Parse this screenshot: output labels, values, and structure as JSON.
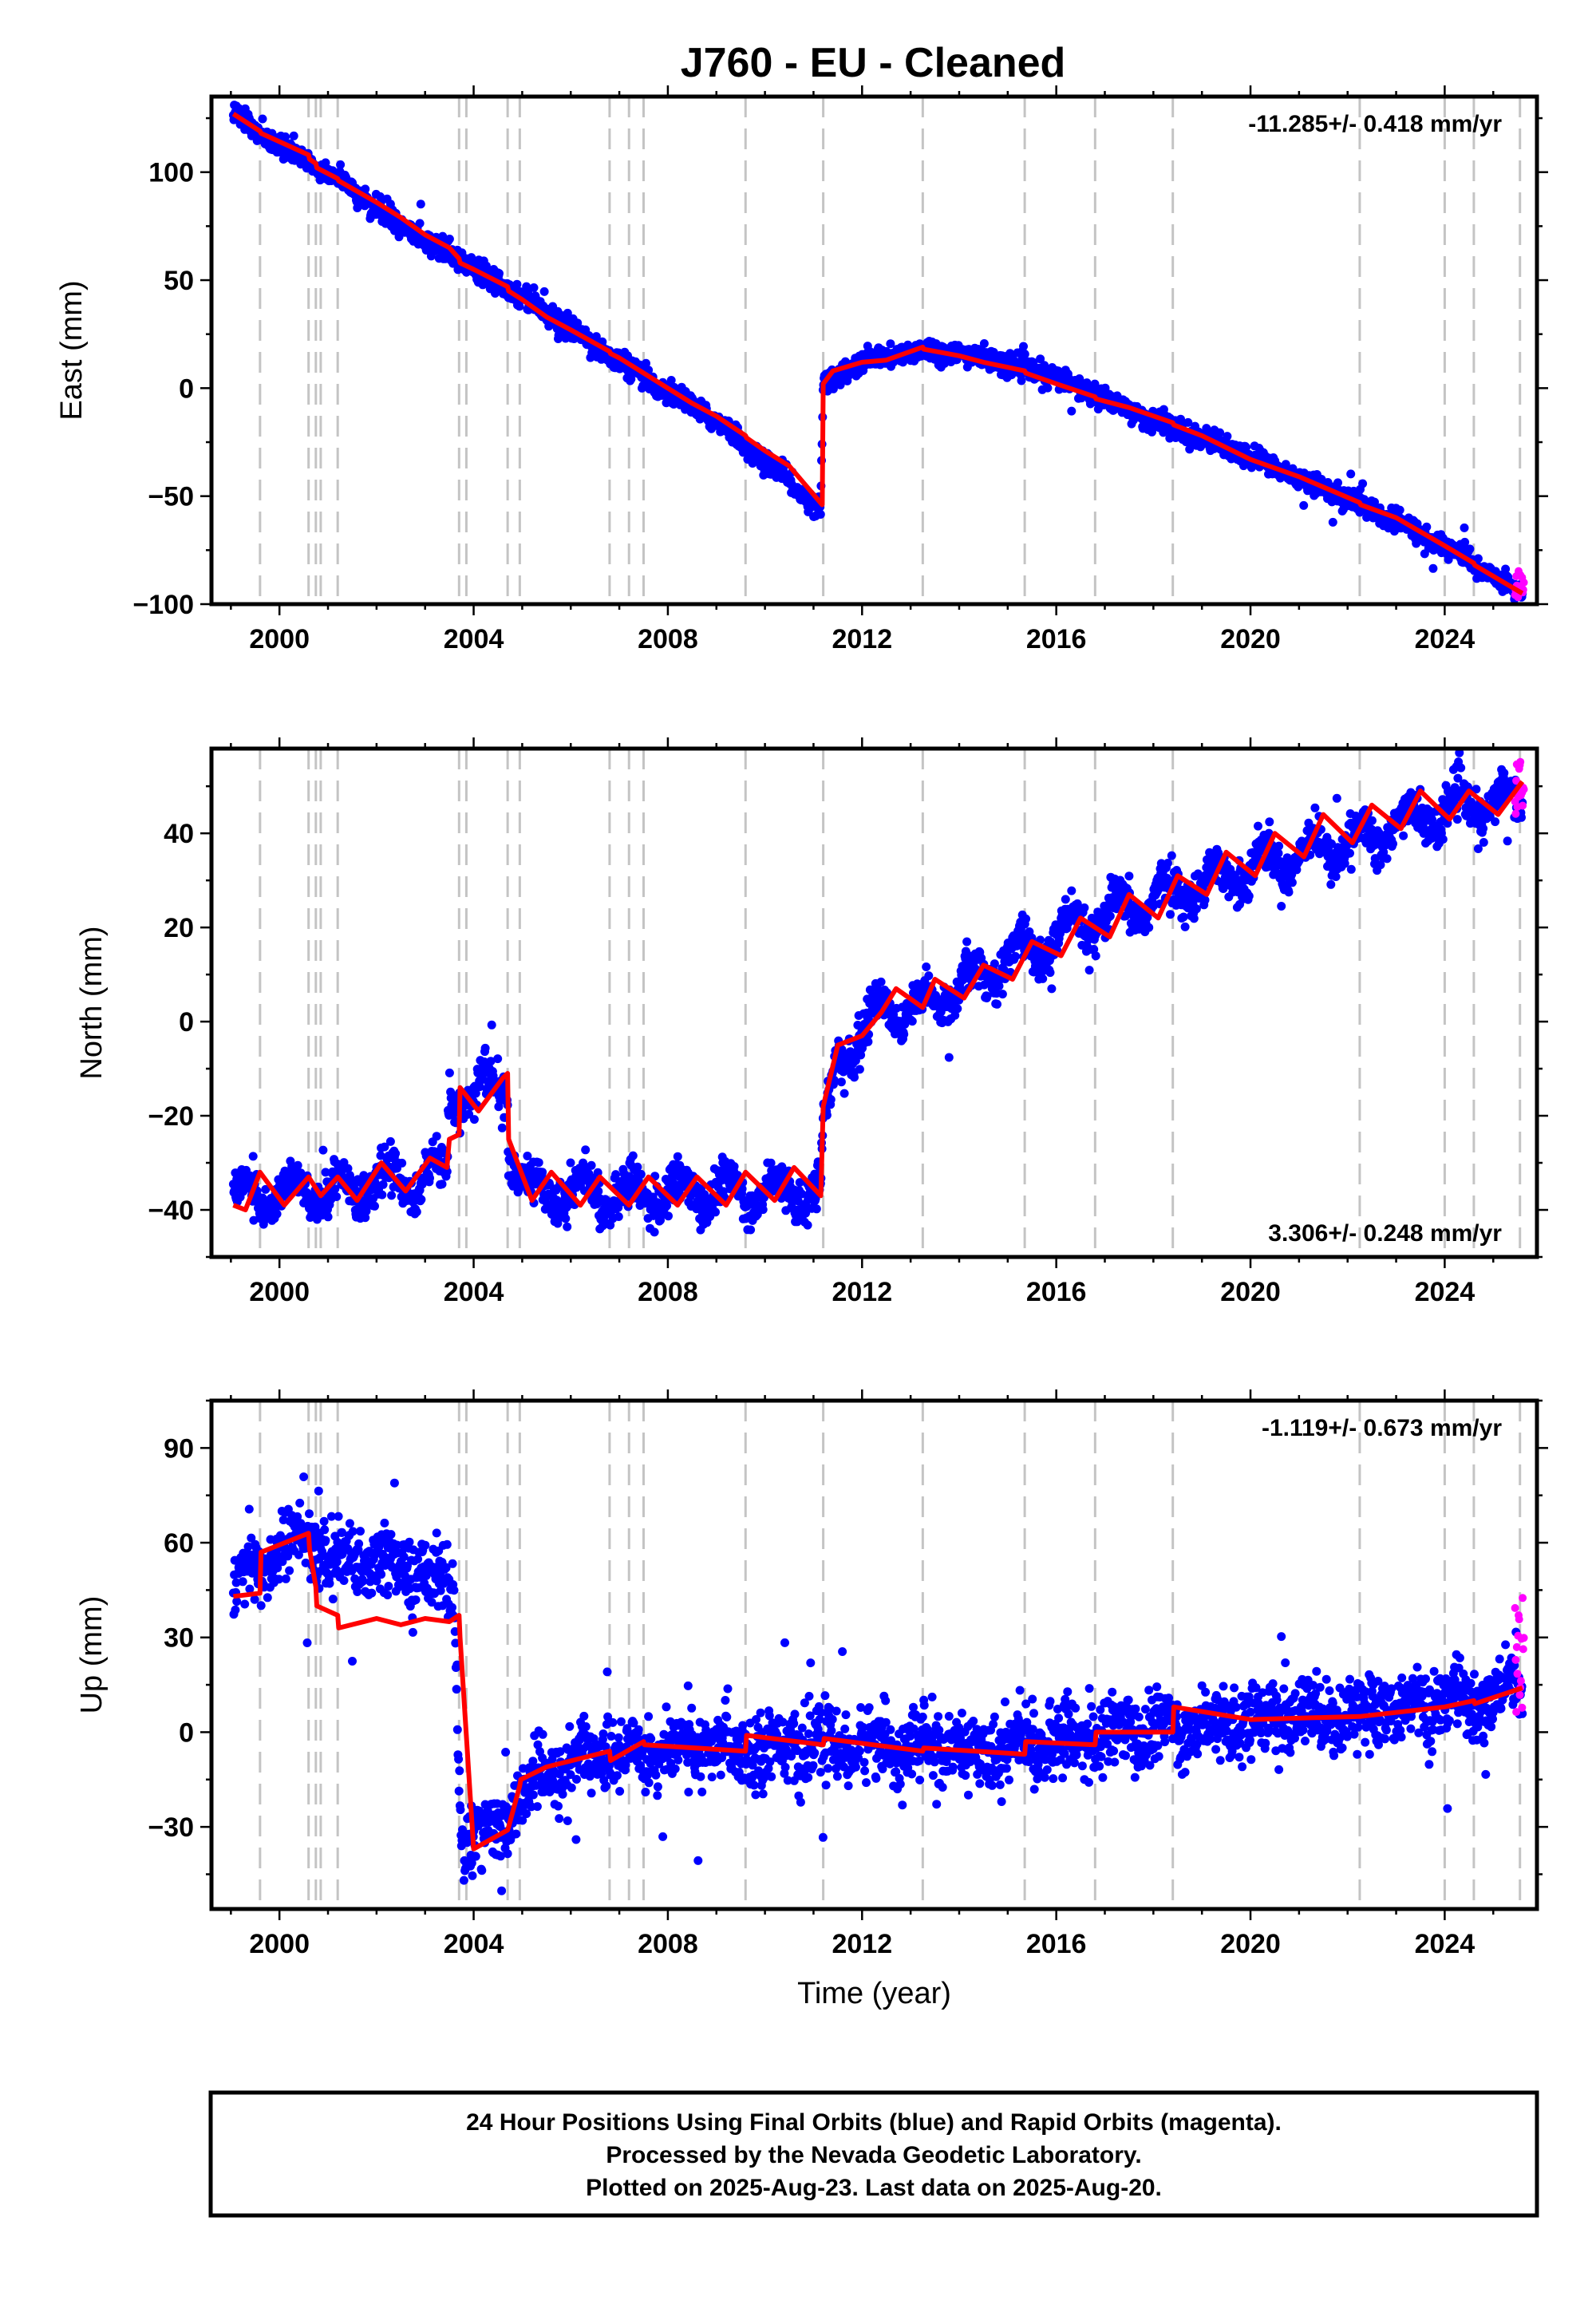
{
  "title": "J760  - EU - Cleaned",
  "colors": {
    "final": "#0000ff",
    "rapid": "#ff00ff",
    "model": "#ff0000",
    "events": "#c4c4c4"
  },
  "event_years": [
    1999.6,
    2000.6,
    2000.75,
    2000.85,
    2001.2,
    2003.7,
    2003.85,
    2004.7,
    2004.95,
    2006.8,
    2007.2,
    2007.5,
    2009.6,
    2011.2,
    2013.25,
    2015.35,
    2016.8,
    2018.4,
    2022.25,
    2024.0,
    2024.6,
    2025.55
  ],
  "footer": [
    "24 Hour Positions Using Final Orbits (blue) and Rapid Orbits (magenta).",
    "Processed by the Nevada Geodetic Laboratory.",
    "Plotted on 2025-Aug-23. Last data on 2025-Aug-20."
  ],
  "chart_data": [
    {
      "type": "scatter",
      "ylabel": "East (mm)",
      "xlabel": "",
      "rate_label": "-11.285+/- 0.418 mm/yr",
      "rate_position": "top-right",
      "xlim": [
        1998.6,
        2025.9
      ],
      "ylim": [
        -100,
        135
      ],
      "xticks": [
        2000,
        2004,
        2008,
        2012,
        2016,
        2020,
        2024
      ],
      "yticks": [
        -100,
        -50,
        0,
        50,
        100
      ],
      "ytick_labels": [
        "−100",
        "−50",
        "0",
        "50",
        "100"
      ],
      "noise": 2.5,
      "seasonal": 0.8,
      "outliers": 0.003,
      "rapid": {
        "from": 2025.45,
        "to": 2025.63,
        "y": [
          -97,
          -84
        ]
      },
      "series": [
        {
          "name": "Final Orbits",
          "x_start": 1999.05,
          "x_end": 2025.6,
          "trend_x": [
            1999.05,
            2000.0,
            2001.2,
            2002.5,
            2004.0,
            2005.0,
            2007.0,
            2009.0,
            2011.15,
            2011.2,
            2012.0,
            2013.3,
            2014.5,
            2016.0,
            2018.0,
            2020.0,
            2022.0,
            2024.0,
            2025.6
          ],
          "trend_y": [
            127,
            112,
            97,
            75,
            56,
            43,
            12,
            -15,
            -56,
            2,
            12,
            18,
            14,
            5,
            -15,
            -32,
            -51,
            -73,
            -95
          ]
        },
        {
          "name": "Model",
          "role": "model",
          "x": [
            1999.05,
            1999.6,
            1999.62,
            2000.6,
            2000.62,
            2000.75,
            2000.77,
            2001.2,
            2001.22,
            2002.0,
            2002.5,
            2003.0,
            2003.5,
            2003.7,
            2003.72,
            2004.0,
            2004.7,
            2004.72,
            2005.0,
            2005.5,
            2006.0,
            2006.8,
            2006.82,
            2007.0,
            2007.5,
            2008.0,
            2008.5,
            2009.0,
            2009.6,
            2009.62,
            2010.0,
            2010.5,
            2011.18,
            2011.2,
            2011.4,
            2012.0,
            2012.5,
            2013.25,
            2013.27,
            2014.0,
            2014.5,
            2015.35,
            2015.37,
            2016.0,
            2016.8,
            2016.82,
            2017.5,
            2018.4,
            2018.42,
            2019.0,
            2020.0,
            2021.0,
            2022.25,
            2022.27,
            2023.0,
            2024.0,
            2024.6,
            2024.62,
            2025.6
          ],
          "y": [
            127,
            119,
            118,
            108,
            106,
            104,
            102,
            97,
            96,
            86,
            79,
            71,
            65,
            60,
            58,
            55,
            47,
            45,
            41,
            33,
            27,
            17,
            16,
            14,
            7,
            0,
            -7,
            -13,
            -22,
            -23,
            -29,
            -36,
            -54,
            2,
            8,
            12,
            13,
            19,
            18,
            15,
            12,
            8,
            7,
            2,
            -4,
            -5,
            -9,
            -16,
            -17,
            -22,
            -33,
            -41,
            -53,
            -54,
            -60,
            -73,
            -81,
            -82,
            -95
          ]
        }
      ]
    },
    {
      "type": "scatter",
      "ylabel": "North (mm)",
      "xlabel": "",
      "rate_label": "3.306+/- 0.248 mm/yr",
      "rate_position": "bottom-right",
      "xlim": [
        1998.6,
        2025.9
      ],
      "ylim": [
        -50,
        58
      ],
      "xticks": [
        2000,
        2004,
        2008,
        2012,
        2016,
        2020,
        2024
      ],
      "yticks": [
        -40,
        -20,
        0,
        20,
        40
      ],
      "ytick_labels": [
        "−40",
        "−20",
        "0",
        "20",
        "40"
      ],
      "noise": 2.2,
      "seasonal": 3.5,
      "outliers": 0.003,
      "rapid": {
        "from": 2025.45,
        "to": 2025.63,
        "y": [
          44,
          57
        ]
      },
      "series": [
        {
          "name": "Final Orbits",
          "x_start": 1999.05,
          "x_end": 2025.6,
          "trend_x": [
            1999.05,
            2001.0,
            2003.0,
            2003.45,
            2003.5,
            2003.7,
            2004.7,
            2004.72,
            2005.0,
            2007.0,
            2009.0,
            2011.15,
            2011.2,
            2011.5,
            2012.0,
            2012.5,
            2013.25,
            2014.0,
            2016.0,
            2018.0,
            2020.0,
            2022.0,
            2024.0,
            2025.6
          ],
          "trend_y": [
            -37,
            -36,
            -33,
            -33,
            -17,
            -15,
            -14,
            -28,
            -35,
            -37,
            -36,
            -36,
            -23,
            -8,
            -3,
            4,
            2,
            8,
            18,
            26,
            33,
            38,
            45,
            47
          ]
        },
        {
          "name": "Model",
          "role": "model",
          "x": [
            1999.05,
            1999.3,
            1999.6,
            2000.1,
            2000.6,
            2000.85,
            2001.2,
            2001.6,
            2002.1,
            2002.6,
            2003.1,
            2003.45,
            2003.5,
            2003.7,
            2003.72,
            2004.1,
            2004.6,
            2004.7,
            2004.72,
            2005.2,
            2005.6,
            2006.2,
            2006.6,
            2007.2,
            2007.6,
            2008.2,
            2008.6,
            2009.2,
            2009.6,
            2010.2,
            2010.6,
            2011.15,
            2011.2,
            2011.5,
            2012.0,
            2012.4,
            2012.7,
            2013.25,
            2013.5,
            2014.1,
            2014.5,
            2015.1,
            2015.5,
            2016.1,
            2016.5,
            2017.1,
            2017.5,
            2018.1,
            2018.5,
            2019.1,
            2019.5,
            2020.1,
            2020.5,
            2021.1,
            2021.5,
            2022.1,
            2022.5,
            2023.1,
            2023.5,
            2024.1,
            2024.5,
            2025.1,
            2025.6
          ],
          "y": [
            -39,
            -40,
            -32,
            -39,
            -33,
            -37,
            -33,
            -38,
            -30,
            -36,
            -29,
            -31,
            -25,
            -24,
            -14,
            -19,
            -12,
            -11,
            -25,
            -38,
            -32,
            -39,
            -33,
            -39,
            -33,
            -39,
            -33,
            -39,
            -32,
            -38,
            -31,
            -37,
            -18,
            -5,
            -3,
            2,
            7,
            3,
            9,
            5,
            12,
            9,
            17,
            14,
            22,
            18,
            27,
            22,
            31,
            27,
            36,
            31,
            40,
            35,
            44,
            38,
            46,
            41,
            49,
            43,
            49,
            44,
            51
          ]
        }
      ]
    },
    {
      "type": "scatter",
      "ylabel": "Up (mm)",
      "xlabel": "Time (year)",
      "rate_label": "-1.119+/- 0.673 mm/yr",
      "rate_position": "top-right",
      "xlim": [
        1998.6,
        2025.9
      ],
      "ylim": [
        -56,
        105
      ],
      "xticks": [
        2000,
        2004,
        2008,
        2012,
        2016,
        2020,
        2024
      ],
      "yticks": [
        -30,
        0,
        30,
        60,
        90
      ],
      "ytick_labels": [
        "−30",
        "0",
        "30",
        "60",
        "90"
      ],
      "noise": 5.5,
      "seasonal": 3.0,
      "outliers": 0.01,
      "rapid": {
        "from": 2025.45,
        "to": 2025.63,
        "y": [
          6,
          46
        ]
      },
      "series": [
        {
          "name": "Final Orbits",
          "x_start": 1999.05,
          "x_end": 2025.6,
          "trend_x": [
            1999.05,
            1999.5,
            2000.0,
            2000.6,
            2001.0,
            2002.0,
            2003.0,
            2003.6,
            2003.75,
            2004.5,
            2005.0,
            2006.0,
            2008.0,
            2010.0,
            2012.0,
            2014.0,
            2016.0,
            2018.0,
            2020.0,
            2022.0,
            2024.0,
            2025.6
          ],
          "trend_y": [
            46,
            52,
            57,
            62,
            54,
            53,
            51,
            44,
            -35,
            -32,
            -20,
            -9,
            -5,
            -5,
            -4,
            -6,
            -3,
            1,
            4,
            6,
            9,
            12
          ]
        },
        {
          "name": "Model",
          "role": "model",
          "x": [
            1999.05,
            1999.6,
            1999.62,
            2000.6,
            2000.62,
            2000.75,
            2000.77,
            2001.2,
            2001.22,
            2002.0,
            2002.5,
            2003.0,
            2003.5,
            2003.7,
            2003.72,
            2004.0,
            2004.7,
            2004.72,
            2004.95,
            2004.97,
            2005.5,
            2006.8,
            2006.82,
            2007.5,
            2007.52,
            2009.6,
            2009.62,
            2011.2,
            2011.22,
            2013.25,
            2013.27,
            2015.35,
            2015.37,
            2016.8,
            2016.82,
            2018.4,
            2018.42,
            2020.0,
            2022.25,
            2022.27,
            2024.0,
            2024.6,
            2024.62,
            2025.6
          ],
          "y": [
            43,
            44,
            57,
            63,
            58,
            46,
            40,
            37,
            33,
            36,
            34,
            36,
            35,
            37,
            30,
            -37,
            -31,
            -30,
            -17,
            -15,
            -11,
            -6,
            -9,
            -3,
            -4,
            -6,
            -1,
            -4,
            -2,
            -6,
            -5,
            -7,
            -3,
            -4,
            0,
            0,
            8,
            4,
            5,
            5,
            8,
            10,
            9,
            14
          ]
        }
      ]
    }
  ]
}
